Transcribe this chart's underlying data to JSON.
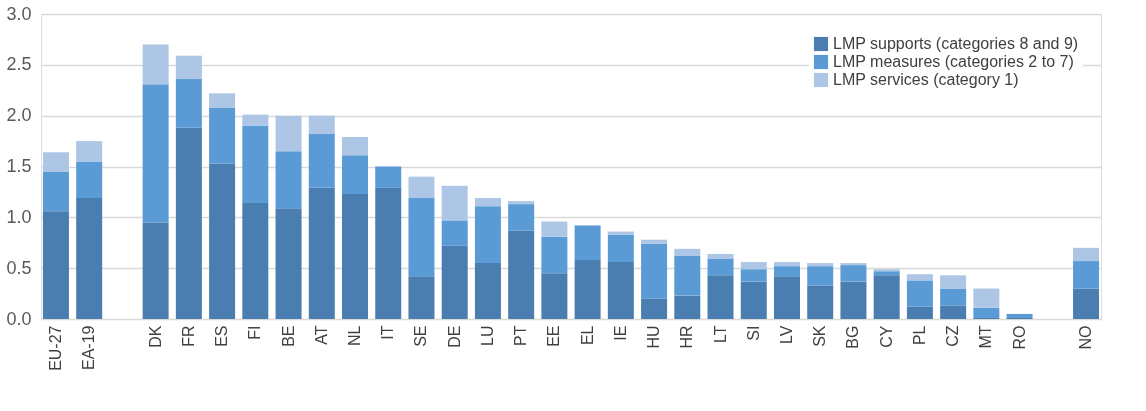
{
  "chart_data": {
    "type": "bar",
    "stacked": true,
    "categories": [
      "EU-27",
      "EA-19",
      null,
      "DK",
      "FR",
      "ES",
      "FI",
      "BE",
      "AT",
      "NL",
      "IT",
      "SE",
      "DE",
      "LU",
      "PT",
      "EE",
      "EL",
      "IE",
      "HU",
      "HR",
      "LT",
      "SI",
      "LV",
      "SK",
      "BG",
      "CY",
      "PL",
      "CZ",
      "MT",
      "RO",
      null,
      "NO"
    ],
    "series": [
      {
        "name": "LMP supports (categories 8 and 9)",
        "color": "#4a7eb0",
        "values": [
          1.06,
          1.19,
          null,
          0.95,
          1.88,
          1.53,
          1.14,
          1.09,
          1.29,
          1.23,
          1.29,
          0.42,
          0.72,
          0.55,
          0.87,
          0.45,
          0.58,
          0.56,
          0.2,
          0.23,
          0.43,
          0.37,
          0.42,
          0.33,
          0.37,
          0.43,
          0.12,
          0.13,
          0.01,
          0.01,
          null,
          0.3
        ]
      },
      {
        "name": "LMP measures (categories 2 to 7)",
        "color": "#5b9bd5",
        "values": [
          0.39,
          0.36,
          null,
          1.36,
          0.48,
          0.55,
          0.76,
          0.56,
          0.53,
          0.38,
          0.21,
          0.77,
          0.25,
          0.56,
          0.26,
          0.36,
          0.34,
          0.27,
          0.54,
          0.39,
          0.16,
          0.12,
          0.1,
          0.19,
          0.16,
          0.04,
          0.26,
          0.17,
          0.1,
          0.04,
          null,
          0.27
        ]
      },
      {
        "name": "LMP services (category 1)",
        "color": "#adc6e5",
        "values": [
          0.19,
          0.2,
          null,
          0.39,
          0.23,
          0.14,
          0.11,
          0.35,
          0.18,
          0.18,
          null,
          0.21,
          0.34,
          0.08,
          0.03,
          0.15,
          null,
          0.03,
          0.04,
          0.07,
          0.05,
          0.07,
          0.04,
          0.03,
          0.02,
          0.02,
          0.06,
          0.13,
          0.19,
          null,
          null,
          0.13
        ]
      }
    ],
    "ylim": [
      0,
      3
    ],
    "yticks": [
      {
        "value": 0,
        "label": "0.0"
      },
      {
        "value": 0.5,
        "label": "0.5"
      },
      {
        "value": 1,
        "label": "1.0"
      },
      {
        "value": 1.5,
        "label": "1.5"
      },
      {
        "value": 2,
        "label": "2.0"
      },
      {
        "value": 2.5,
        "label": "2.5"
      },
      {
        "value": 3,
        "label": "3.0"
      }
    ],
    "grid": "y",
    "legend": "top right"
  }
}
